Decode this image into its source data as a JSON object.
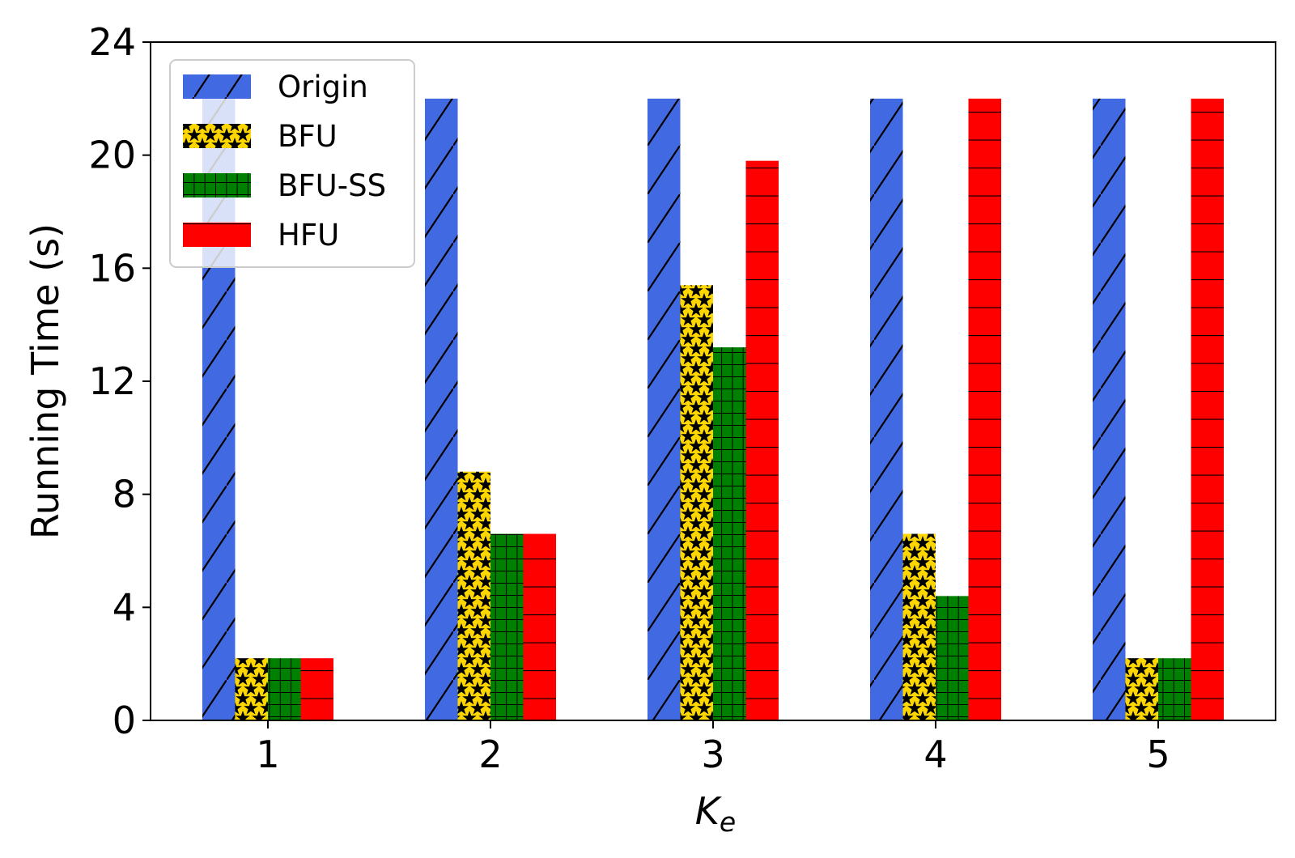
{
  "chart_data": {
    "type": "bar",
    "xlabel": "K",
    "xlabel_sub": "e",
    "ylabel": "Running Time (s)",
    "ylim": [
      0,
      24
    ],
    "yticks": [
      "0",
      "4",
      "8",
      "12",
      "16",
      "20",
      "24"
    ],
    "categories": [
      "1",
      "2",
      "3",
      "4",
      "5"
    ],
    "legend_position": "upper-left",
    "grid": false,
    "series": [
      {
        "name": "Origin",
        "values": [
          22,
          22,
          22,
          22,
          22
        ],
        "color": "#4169e1",
        "pattern": "diagonal-hatch"
      },
      {
        "name": "BFU",
        "values": [
          2.2,
          8.8,
          15.4,
          6.6,
          2.2
        ],
        "color": "#ffd700",
        "pattern": "stars"
      },
      {
        "name": "BFU-SS",
        "values": [
          2.2,
          6.6,
          13.2,
          4.4,
          2.2
        ],
        "color": "#008000",
        "pattern": "grid"
      },
      {
        "name": "HFU",
        "values": [
          2.2,
          6.6,
          19.8,
          22,
          22
        ],
        "color": "#ff0000",
        "pattern": "horizontal-lines"
      }
    ]
  }
}
